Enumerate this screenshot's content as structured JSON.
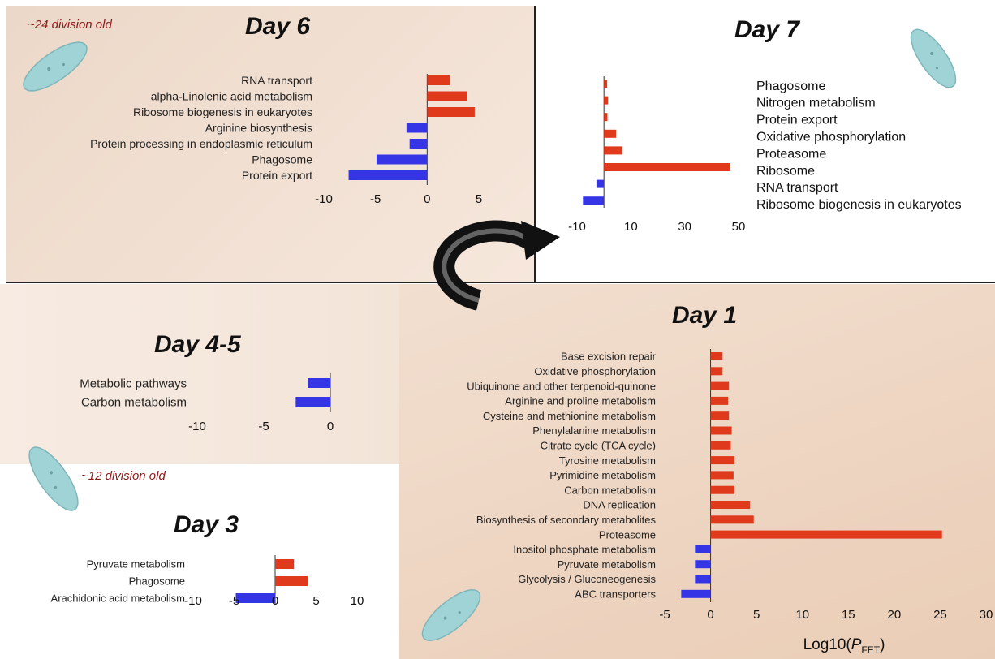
{
  "colors": {
    "positive": "#e03a1c",
    "negative": "#3535e6",
    "axis": "#333333",
    "note": "#8b1a1a"
  },
  "notes": {
    "top_left": "~24 division old",
    "mid_left": "~12 division old"
  },
  "chart_data": [
    {
      "type": "bar",
      "title": "Day 6",
      "orientation": "horizontal",
      "categories": [
        "RNA transport",
        "alpha-Linolenic acid metabolism",
        "Ribosome biogenesis in eukaryotes",
        "Arginine biosynthesis",
        "Protein processing in endoplasmic reticulum",
        "Phagosome",
        "Protein export"
      ],
      "values": [
        2.2,
        3.9,
        4.6,
        -2.0,
        -1.7,
        -4.9,
        -7.6
      ],
      "xlim": [
        -10,
        5
      ],
      "xticks": [
        "-10",
        "-5",
        "0",
        "5"
      ]
    },
    {
      "type": "bar",
      "title": "Day 7",
      "orientation": "horizontal",
      "categories": [
        "Phagosome",
        "Nitrogen metabolism",
        "Protein export",
        "Oxidative phosphorylation",
        "Proteasome",
        "Ribosome",
        "RNA transport",
        "Ribosome biogenesis in eukaryotes"
      ],
      "values": [
        1.2,
        1.5,
        1.3,
        4.5,
        6.8,
        47.0,
        -2.8,
        -7.8
      ],
      "xlim": [
        -10,
        50
      ],
      "xticks": [
        "-10",
        "10",
        "30",
        "50"
      ]
    },
    {
      "type": "bar",
      "title": "Day 4-5",
      "orientation": "horizontal",
      "categories": [
        "Metabolic pathways",
        "Carbon metabolism"
      ],
      "values": [
        -1.7,
        -2.6
      ],
      "xlim": [
        -10,
        0
      ],
      "xticks": [
        "-10",
        "-5",
        "0"
      ]
    },
    {
      "type": "bar",
      "title": "Day 3",
      "orientation": "horizontal",
      "categories": [
        "Pyruvate metabolism",
        "Phagosome",
        "Arachidonic acid metabolism"
      ],
      "values": [
        2.3,
        4.0,
        -4.8
      ],
      "xlim": [
        -10,
        10
      ],
      "xticks": [
        "-10",
        "-5",
        "0",
        "5",
        "10"
      ]
    },
    {
      "type": "bar",
      "title": "Day 1",
      "orientation": "horizontal",
      "xlabel": "Log10(PFET)",
      "categories": [
        "Base excision repair",
        "Oxidative phosphorylation",
        "Ubiquinone and other terpenoid-quinone",
        "Arginine and proline metabolism",
        "Cysteine and methionine metabolism",
        "Phenylalanine metabolism",
        "Citrate cycle (TCA cycle)",
        "Tyrosine metabolism",
        "Pyrimidine metabolism",
        "Carbon metabolism",
        "DNA replication",
        "Biosynthesis of secondary metabolites",
        "Proteasome",
        "Inositol phosphate metabolism",
        "Pyruvate metabolism",
        "Glycolysis / Gluconeogenesis",
        "ABC transporters"
      ],
      "values": [
        1.3,
        1.3,
        2.0,
        1.9,
        2.0,
        2.3,
        2.2,
        2.6,
        2.5,
        2.6,
        4.3,
        4.7,
        25.2,
        -1.7,
        -1.7,
        -1.7,
        -3.2
      ],
      "xlim": [
        -5,
        30
      ],
      "xticks": [
        "-5",
        "0",
        "5",
        "10",
        "15",
        "20",
        "25",
        "30"
      ]
    }
  ]
}
